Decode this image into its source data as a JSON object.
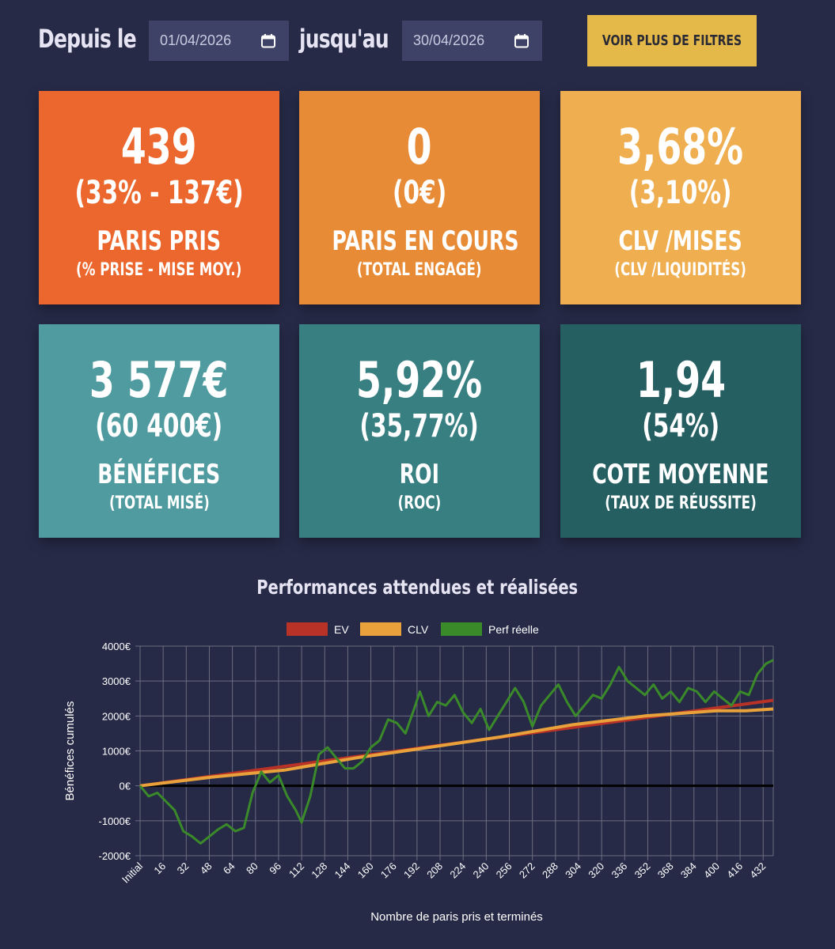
{
  "filters": {
    "from_label": "Depuis le",
    "from_date": "01/04/2026",
    "to_label": "jusqu'au",
    "to_date": "30/04/2026",
    "more_filters": "VOIR PLUS DE FILTRES"
  },
  "cards": [
    {
      "value": "439",
      "sub": "(33% - 137€)",
      "label": "PARIS PRIS",
      "sublabel": "(% PRISE - MISE MOY.)",
      "color": "#eb672d"
    },
    {
      "value": "0",
      "sub": "(0€)",
      "label": "PARIS EN COURS",
      "sublabel": "(TOTAL ENGAGÉ)",
      "color": "#e88b36"
    },
    {
      "value": "3,68%",
      "sub": "(3,10%)",
      "label": "CLV /MISES",
      "sublabel": "(CLV /LIQUIDITÉS)",
      "color": "#efae50"
    },
    {
      "value": "3 577€",
      "sub": "(60 400€)",
      "label": "BÉNÉFICES",
      "sublabel": "(TOTAL MISÉ)",
      "color": "#4f9b9f"
    },
    {
      "value": "5,92%",
      "sub": "(35,77%)",
      "label": "ROI",
      "sublabel": "(ROC)",
      "color": "#387f82"
    },
    {
      "value": "1,94",
      "sub": "(54%)",
      "label": "COTE MOYENNE",
      "sublabel": "(TAUX DE RÉUSSITE)",
      "color": "#265f61"
    }
  ],
  "chart_data": {
    "type": "line",
    "title": "Performances attendues et réalisées",
    "xlabel": "Nombre de paris pris et terminés",
    "ylabel": "Bénéfices cumulés",
    "ylim": [
      -2000,
      4000
    ],
    "yticks": [
      "4000€",
      "3000€",
      "2000€",
      "1000€",
      "0€",
      "-1000€",
      "-2000€"
    ],
    "xticks": [
      "Initial",
      "16",
      "32",
      "48",
      "64",
      "80",
      "96",
      "112",
      "128",
      "144",
      "160",
      "176",
      "192",
      "208",
      "224",
      "240",
      "256",
      "272",
      "288",
      "304",
      "320",
      "336",
      "352",
      "368",
      "384",
      "400",
      "416",
      "432"
    ],
    "xmax": 439,
    "grid": true,
    "legend_position": "top",
    "series": [
      {
        "name": "EV",
        "color": "#b83227",
        "points": [
          [
            0,
            0
          ],
          [
            439,
            2450
          ]
        ]
      },
      {
        "name": "CLV",
        "color": "#e9a23b",
        "points": [
          [
            0,
            0
          ],
          [
            50,
            250
          ],
          [
            100,
            450
          ],
          [
            150,
            800
          ],
          [
            200,
            1100
          ],
          [
            250,
            1400
          ],
          [
            300,
            1750
          ],
          [
            350,
            2000
          ],
          [
            400,
            2150
          ],
          [
            420,
            2150
          ],
          [
            439,
            2200
          ]
        ]
      },
      {
        "name": "Perf réelle",
        "color": "#3a8a2a",
        "points": [
          [
            0,
            0
          ],
          [
            6,
            -300
          ],
          [
            12,
            -200
          ],
          [
            18,
            -450
          ],
          [
            24,
            -700
          ],
          [
            30,
            -1300
          ],
          [
            36,
            -1450
          ],
          [
            42,
            -1650
          ],
          [
            48,
            -1450
          ],
          [
            54,
            -1250
          ],
          [
            60,
            -1100
          ],
          [
            66,
            -1300
          ],
          [
            72,
            -1200
          ],
          [
            78,
            -200
          ],
          [
            84,
            400
          ],
          [
            90,
            100
          ],
          [
            96,
            300
          ],
          [
            102,
            -300
          ],
          [
            108,
            -700
          ],
          [
            112,
            -1050
          ],
          [
            118,
            -300
          ],
          [
            124,
            900
          ],
          [
            130,
            1100
          ],
          [
            136,
            800
          ],
          [
            142,
            500
          ],
          [
            148,
            500
          ],
          [
            154,
            700
          ],
          [
            160,
            1100
          ],
          [
            166,
            1300
          ],
          [
            172,
            1900
          ],
          [
            178,
            1800
          ],
          [
            184,
            1500
          ],
          [
            190,
            2200
          ],
          [
            194,
            2700
          ],
          [
            200,
            2000
          ],
          [
            206,
            2400
          ],
          [
            212,
            2300
          ],
          [
            218,
            2600
          ],
          [
            224,
            2100
          ],
          [
            230,
            1800
          ],
          [
            236,
            2200
          ],
          [
            242,
            1600
          ],
          [
            248,
            2000
          ],
          [
            254,
            2400
          ],
          [
            260,
            2800
          ],
          [
            266,
            2400
          ],
          [
            272,
            1700
          ],
          [
            278,
            2300
          ],
          [
            284,
            2600
          ],
          [
            290,
            2900
          ],
          [
            296,
            2400
          ],
          [
            302,
            2000
          ],
          [
            308,
            2300
          ],
          [
            314,
            2600
          ],
          [
            320,
            2500
          ],
          [
            326,
            2900
          ],
          [
            332,
            3400
          ],
          [
            338,
            3000
          ],
          [
            344,
            2800
          ],
          [
            350,
            2600
          ],
          [
            356,
            2900
          ],
          [
            362,
            2500
          ],
          [
            368,
            2700
          ],
          [
            374,
            2400
          ],
          [
            380,
            2800
          ],
          [
            386,
            2700
          ],
          [
            392,
            2400
          ],
          [
            398,
            2700
          ],
          [
            404,
            2500
          ],
          [
            410,
            2300
          ],
          [
            416,
            2700
          ],
          [
            422,
            2600
          ],
          [
            428,
            3200
          ],
          [
            434,
            3500
          ],
          [
            439,
            3600
          ]
        ]
      }
    ]
  }
}
